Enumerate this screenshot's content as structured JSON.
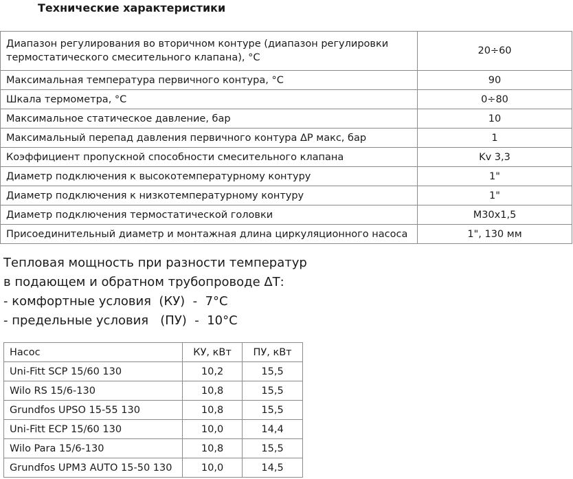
{
  "header": {
    "title": "Технические характеристики"
  },
  "spec_table": {
    "rows": [
      [
        "Диапазон регулирования во вторичном контуре (диапазон регулировки термостатического смесительного клапана), °С",
        "20÷60"
      ],
      [
        "Максимальная температура первичного контура, °С",
        "90"
      ],
      [
        "Шкала термометра, °С",
        "0÷80"
      ],
      [
        "Максимальное статическое давление, бар",
        "10"
      ],
      [
        "Максимальный перепад давления первичного контура ΔP макс, бар",
        "1"
      ],
      [
        "Коэффициент пропускной способности смесительного клапана",
        "Kv 3,3"
      ],
      [
        "Диаметр подключения к высокотемпературному контуру",
        "1\""
      ],
      [
        "Диаметр подключения к низкотемпературному контуру",
        "1\""
      ],
      [
        "Диаметр подключения термостатической головки",
        "M30x1,5"
      ],
      [
        "Присоединительный диаметр и монтажная длина циркуляционного насоса",
        "1\", 130 мм"
      ]
    ]
  },
  "notes": {
    "lines": [
      "Тепловая мощность при разности температур",
      "в подающем и обратном трубопроводе ΔТ:",
      "- комфортные условия  (КУ)  -  7°С",
      "- предельные условия   (ПУ)  -  10°С"
    ]
  },
  "pump_table": {
    "header": [
      "Насос",
      "КУ, кВт",
      "ПУ, кВт"
    ],
    "rows": [
      [
        "Uni-Fitt SCP 15/60 130",
        "10,2",
        "15,5"
      ],
      [
        "Wilo RS 15/6-130",
        "10,8",
        "15,5"
      ],
      [
        "Grundfos UPSO 15-55 130",
        "10,8",
        "15,5"
      ],
      [
        "Uni-Fitt ECP 15/60 130",
        "10,0",
        "14,4"
      ],
      [
        "Wilo Para 15/6-130",
        "10,8",
        "15,5"
      ],
      [
        "Grundfos UPM3 AUTO 15-50 130",
        "10,0",
        "14,5"
      ]
    ]
  }
}
